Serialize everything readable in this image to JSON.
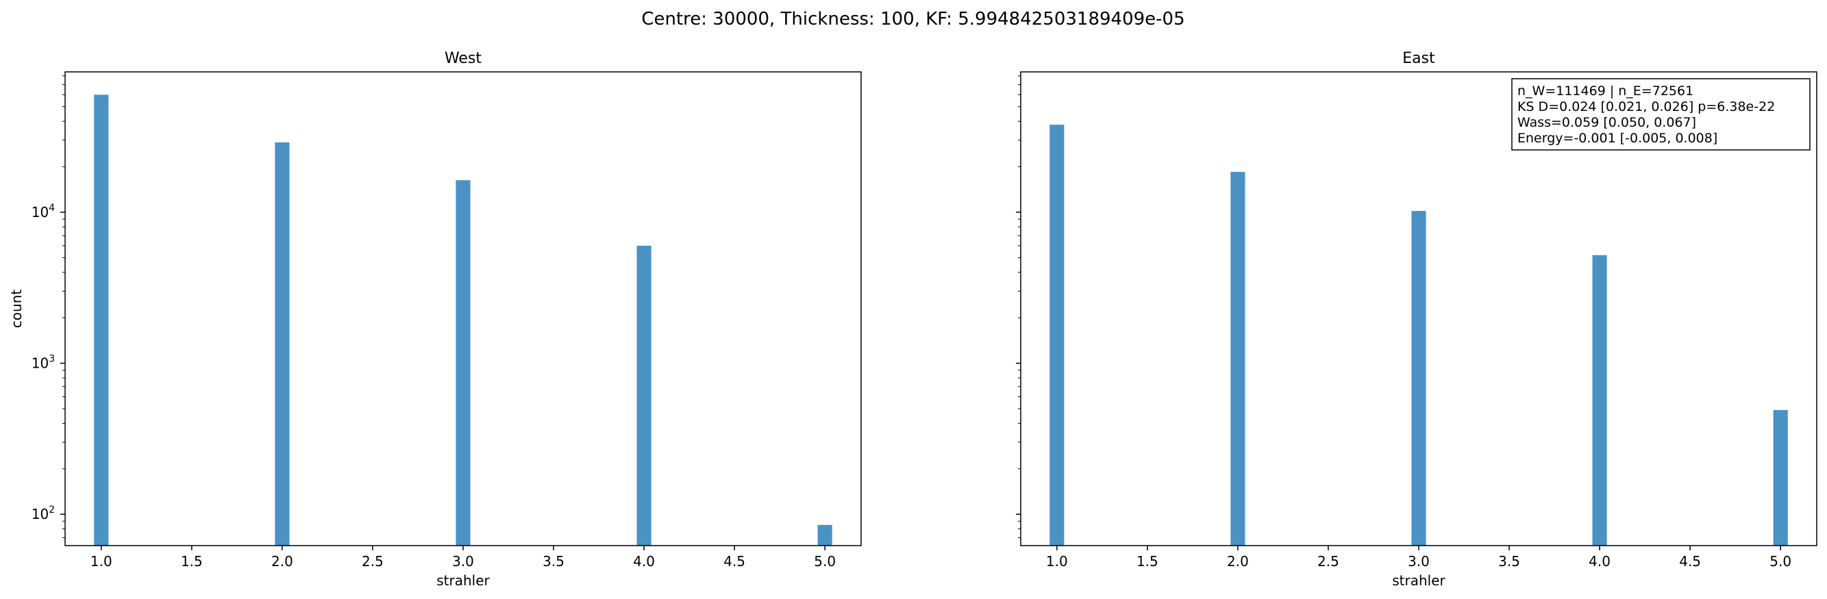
{
  "suptitle": "Centre: 30000, Thickness: 100, KF: 5.994842503189409e-05",
  "colors": {
    "bar": "#4a92c4",
    "axis": "#000000"
  },
  "chart_data": [
    {
      "type": "bar",
      "title": "West",
      "xlabel": "strahler",
      "ylabel": "count",
      "yscale": "log",
      "xlim": [
        0.8,
        5.2
      ],
      "ylim": [
        62,
        85000
      ],
      "xticks": [
        1.0,
        1.5,
        2.0,
        2.5,
        3.0,
        3.5,
        4.0,
        4.5,
        5.0
      ],
      "xtick_labels": [
        "1.0",
        "1.5",
        "2.0",
        "2.5",
        "3.0",
        "3.5",
        "4.0",
        "4.5",
        "5.0"
      ],
      "yticks": [
        100,
        1000,
        10000
      ],
      "ytick_labels": [
        [
          "10",
          "2"
        ],
        [
          "10",
          "3"
        ],
        [
          "10",
          "4"
        ]
      ],
      "bar_width": 0.08,
      "x": [
        1.0,
        2.0,
        3.0,
        4.0,
        5.0
      ],
      "values": [
        60000,
        29000,
        16300,
        6000,
        85
      ],
      "annotation": []
    },
    {
      "type": "bar",
      "title": "East",
      "xlabel": "strahler",
      "ylabel": "",
      "yscale": "log",
      "xlim": [
        0.8,
        5.2
      ],
      "ylim": [
        62,
        85000
      ],
      "xticks": [
        1.0,
        1.5,
        2.0,
        2.5,
        3.0,
        3.5,
        4.0,
        4.5,
        5.0
      ],
      "xtick_labels": [
        "1.0",
        "1.5",
        "2.0",
        "2.5",
        "3.0",
        "3.5",
        "4.0",
        "4.5",
        "5.0"
      ],
      "yticks": [
        100,
        1000,
        10000
      ],
      "ytick_labels": [],
      "bar_width": 0.08,
      "x": [
        1.0,
        2.0,
        3.0,
        4.0,
        5.0
      ],
      "values": [
        38000,
        18500,
        10200,
        5200,
        490
      ],
      "annotation": [
        "n_W=111469 | n_E=72561",
        "KS D=0.024 [0.021, 0.026]  p=6.38e-22",
        "Wass=0.059 [0.050, 0.067]",
        "Energy=-0.001 [-0.005, 0.008]"
      ]
    }
  ]
}
